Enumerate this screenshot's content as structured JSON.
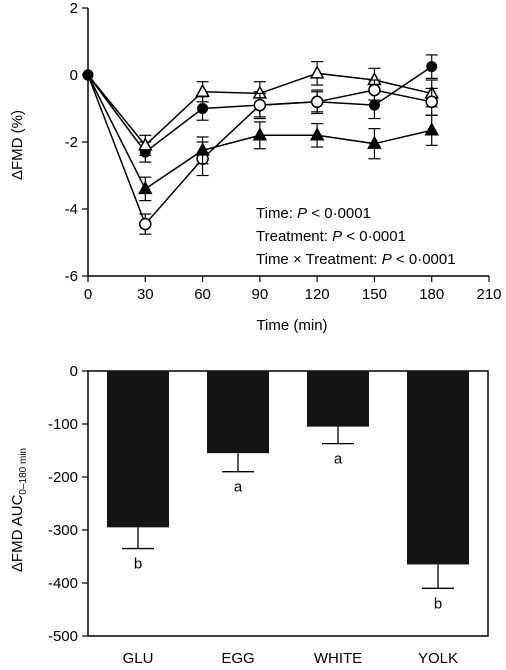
{
  "chart_data": [
    {
      "type": "line",
      "xlabel": "Time (min)",
      "ylabel": "ΔFMD (%)",
      "xlim": [
        0,
        210
      ],
      "ylim": [
        -6,
        2
      ],
      "x_ticks": [
        0,
        30,
        60,
        90,
        120,
        150,
        180,
        210
      ],
      "y_ticks": [
        2,
        0,
        -2,
        -4,
        -6
      ],
      "x": [
        0,
        30,
        60,
        90,
        120,
        150,
        180
      ],
      "series": [
        {
          "marker": "filled-circle",
          "values": [
            0,
            -2.3,
            -1.0,
            -0.9,
            -0.8,
            -0.9,
            0.25
          ],
          "errors": [
            0,
            0.3,
            0.35,
            0.4,
            0.35,
            0.4,
            0.35
          ]
        },
        {
          "marker": "open-triangle",
          "values": [
            0,
            -2.1,
            -0.5,
            -0.55,
            0.05,
            -0.15,
            -0.55
          ],
          "errors": [
            0,
            0.3,
            0.3,
            0.35,
            0.35,
            0.35,
            0.4
          ]
        },
        {
          "marker": "open-circle",
          "values": [
            0,
            -4.45,
            -2.5,
            -0.9,
            -0.8,
            -0.45,
            -0.8
          ],
          "errors": [
            0,
            0.3,
            0.5,
            0.35,
            0.3,
            0.3,
            0.4
          ]
        },
        {
          "marker": "filled-triangle",
          "values": [
            0,
            -3.4,
            -2.25,
            -1.8,
            -1.8,
            -2.05,
            -1.65
          ],
          "errors": [
            0,
            0.35,
            0.4,
            0.4,
            0.35,
            0.45,
            0.45
          ]
        }
      ],
      "annotations": [
        {
          "prefix": "Time: ",
          "p": "P",
          "suffix": " < 0·0001"
        },
        {
          "prefix": "Treatment: ",
          "p": "P",
          "suffix": " < 0·0001"
        },
        {
          "prefix": "Time × Treatment: ",
          "p": "P",
          "suffix": " < 0·0001"
        }
      ]
    },
    {
      "type": "bar",
      "ylabel": "ΔFMD AUC",
      "ylabel_sub": "0–180 min",
      "ylim": [
        -500,
        0
      ],
      "y_ticks": [
        0,
        -100,
        -200,
        -300,
        -400,
        -500
      ],
      "categories": [
        "GLU",
        "EGG",
        "WHITE",
        "YOLK"
      ],
      "values": [
        -295,
        -155,
        -105,
        -365
      ],
      "errors": [
        40,
        35,
        32,
        45
      ],
      "labels": [
        "b",
        "a",
        "a",
        "b"
      ]
    }
  ]
}
